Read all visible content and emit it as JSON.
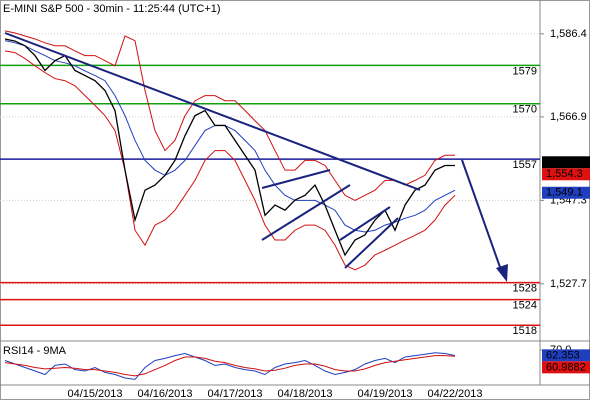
{
  "chart_data": {
    "type": "line",
    "title": "E-MINI S&P 500 - 30min - 11:25:44 (UTC+1)",
    "categories": [
      null,
      null,
      null,
      null,
      null,
      null,
      null,
      null,
      null,
      "04/15/2013",
      null,
      null,
      null,
      null,
      null,
      null,
      "04/16/2013",
      null,
      null,
      null,
      null,
      null,
      null,
      "04/17/2013",
      null,
      null,
      null,
      null,
      null,
      null,
      "04/18/2013",
      null,
      null,
      null,
      null,
      null,
      null,
      null,
      "04/19/2013",
      null,
      null,
      null,
      null,
      null,
      null,
      "04/22/2013"
    ],
    "ylim": [
      1515,
      1592
    ],
    "yticks": [
      {
        "value": 1586.4,
        "label": "1,586.4"
      },
      {
        "value": 1566.9,
        "label": "1,566.9"
      },
      {
        "value": 1547.3,
        "label": "1,547.3"
      },
      {
        "value": 1527.7,
        "label": "1,527.7"
      }
    ],
    "grid": true,
    "series": [
      {
        "color": "#d01010",
        "values": [
          1587.1,
          1586.6,
          1585.9,
          1585.2,
          1584.3,
          1583.6,
          1583.6,
          1582.4,
          1581.3,
          1581.3,
          1580.1,
          1578.9,
          1585.9,
          1584.8,
          1573.1,
          1563.7,
          1559.0,
          1561.4,
          1567.2,
          1570.7,
          1571.9,
          1571.9,
          1570.7,
          1570.7,
          1568.4,
          1566.0,
          1563.7,
          1559.0,
          1554.4,
          1554.4,
          1556.7,
          1556.7,
          1555.5,
          1552.0,
          1548.5,
          1547.3,
          1548.5,
          1549.7,
          1552.0,
          1552.0,
          1550.9,
          1552.0,
          1553.2,
          1556.7,
          1557.9,
          1557.9
        ]
      },
      {
        "color": "#d01010",
        "values": [
          1582.4,
          1582.0,
          1580.6,
          1578.9,
          1577.3,
          1575.9,
          1575.4,
          1574.2,
          1571.9,
          1569.6,
          1567.2,
          1563.7,
          1554.4,
          1540.3,
          1536.8,
          1541.5,
          1542.7,
          1545.0,
          1548.5,
          1552.0,
          1556.7,
          1559.0,
          1559.0,
          1556.7,
          1552.0,
          1547.3,
          1541.5,
          1538.0,
          1538.0,
          1540.3,
          1541.5,
          1541.5,
          1540.3,
          1536.8,
          1532.1,
          1531.0,
          1532.1,
          1534.5,
          1535.6,
          1536.8,
          1538.0,
          1539.1,
          1540.3,
          1542.7,
          1546.2,
          1548.5
        ]
      },
      {
        "color": "#1f3fbf",
        "values": [
          1584.8,
          1584.3,
          1583.6,
          1582.4,
          1581.3,
          1580.1,
          1579.6,
          1578.9,
          1577.7,
          1576.6,
          1575.4,
          1571.9,
          1567.2,
          1561.4,
          1556.7,
          1554.4,
          1553.2,
          1554.4,
          1556.7,
          1560.2,
          1563.7,
          1564.9,
          1564.9,
          1563.7,
          1561.4,
          1559.0,
          1554.4,
          1550.9,
          1548.5,
          1547.3,
          1547.3,
          1547.3,
          1546.2,
          1545.0,
          1541.5,
          1540.3,
          1539.9,
          1540.3,
          1541.5,
          1542.2,
          1543.1,
          1543.8,
          1545.0,
          1547.3,
          1548.5,
          1549.7
        ]
      },
      {
        "color": "#000000",
        "values": [
          1585.2,
          1584.7,
          1583.6,
          1581.3,
          1577.8,
          1580.1,
          1581.3,
          1577.8,
          1576.6,
          1575.4,
          1573.1,
          1568.4,
          1554.4,
          1542.7,
          1549.7,
          1550.9,
          1553.2,
          1556.7,
          1562.5,
          1567.2,
          1568.4,
          1564.9,
          1564.9,
          1561.4,
          1557.9,
          1554.4,
          1543.8,
          1546.2,
          1545.0,
          1547.4,
          1548.5,
          1550.9,
          1546.2,
          1540.3,
          1534.5,
          1538.0,
          1539.2,
          1542.7,
          1545.0,
          1540.3,
          1546.2,
          1549.7,
          1550.9,
          1554.4,
          1555.5,
          1555.5
        ]
      }
    ],
    "levels": [
      {
        "value": 1579,
        "color": "#10a010"
      },
      {
        "value": 1570,
        "color": "#10a010"
      },
      {
        "value": 1557,
        "color": "#1a1a9a"
      },
      {
        "value": 1528,
        "color": "#e01010"
      },
      {
        "value": 1524,
        "color": "#e01010"
      },
      {
        "value": 1518,
        "color": "#e01010"
      }
    ],
    "price_markers": [
      {
        "value": 1556.25,
        "label": "1,556.25",
        "color": "#000000"
      },
      {
        "value": 1554.3,
        "label": "1,554.3",
        "color": "#e01010"
      },
      {
        "value": 1549.1,
        "label": "1,549.1",
        "color": "#1f3fbf"
      }
    ],
    "rsi": {
      "title": "RSI14 - 9MA",
      "ylim": [
        20,
        80
      ],
      "yticks": [
        {
          "value": 70,
          "label": "70.0"
        }
      ],
      "series": [
        {
          "color": "#1f3fbf",
          "values": [
            55,
            50,
            45,
            40,
            35,
            48,
            50,
            42,
            40,
            45,
            38,
            35,
            30,
            28,
            45,
            55,
            58,
            62,
            65,
            60,
            55,
            48,
            50,
            45,
            42,
            40,
            35,
            45,
            50,
            52,
            55,
            48,
            40,
            35,
            38,
            42,
            50,
            55,
            58,
            52,
            60,
            62,
            64,
            66,
            65,
            62
          ]
        },
        {
          "color": "#d01010",
          "values": [
            52,
            50,
            48,
            45,
            43,
            44,
            45,
            44,
            42,
            42,
            40,
            38,
            35,
            33,
            36,
            42,
            48,
            55,
            60,
            60,
            58,
            54,
            52,
            48,
            45,
            43,
            40,
            41,
            44,
            48,
            50,
            50,
            47,
            42,
            40,
            40,
            43,
            48,
            52,
            54,
            56,
            58,
            60,
            62,
            62,
            61
          ]
        }
      ],
      "markers": [
        {
          "value": 62.353,
          "color": "#1f3fbf"
        },
        {
          "value": 60.9882,
          "color": "#e01010"
        }
      ]
    }
  }
}
